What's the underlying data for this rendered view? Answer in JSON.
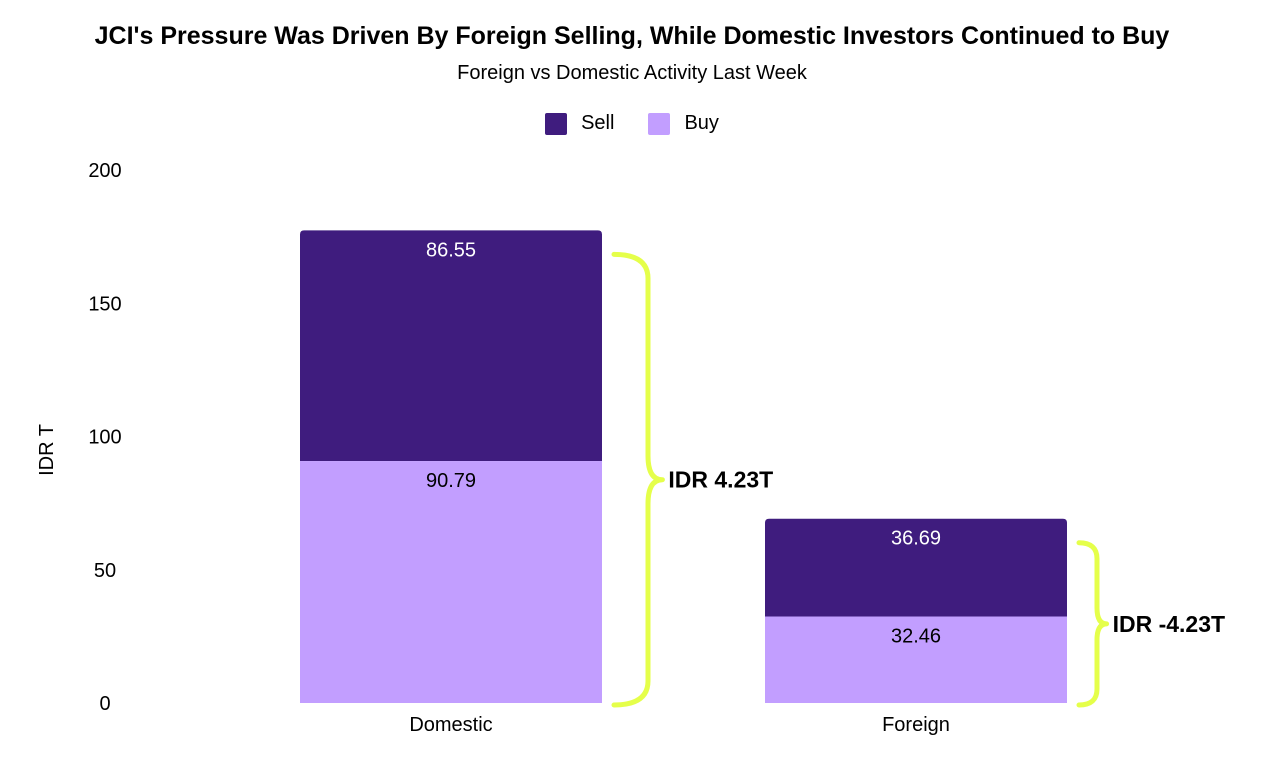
{
  "chart_data": {
    "type": "bar",
    "stacked": true,
    "title": "JCI's Pressure Was Driven By Foreign Selling, While Domestic Investors Continued to Buy",
    "subtitle": "Foreign vs Domestic Activity Last Week",
    "xlabel": "",
    "ylabel": "IDR T",
    "ylim": [
      0,
      200
    ],
    "yticks": [
      0,
      50,
      100,
      150,
      200
    ],
    "grid": false,
    "legend_position": "top-center",
    "categories": [
      "Domestic",
      "Foreign"
    ],
    "series": [
      {
        "name": "Buy",
        "values": [
          90.79,
          32.46
        ],
        "color": "#C29EFF"
      },
      {
        "name": "Sell",
        "values": [
          86.55,
          36.69
        ],
        "color": "#3F1C7E"
      }
    ],
    "legend_order": [
      "Sell",
      "Buy"
    ],
    "annotations": [
      {
        "category": "Domestic",
        "text": "IDR 4.23T",
        "bracket_color": "#E5FF4A"
      },
      {
        "category": "Foreign",
        "text": "IDR -4.23T",
        "bracket_color": "#E5FF4A"
      }
    ]
  }
}
